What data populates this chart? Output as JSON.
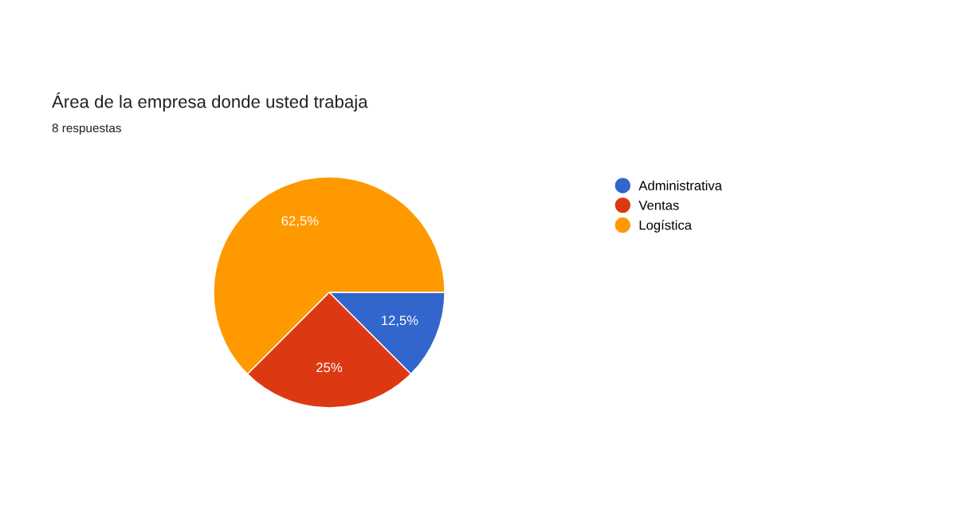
{
  "chart_data": {
    "type": "pie",
    "title": "Área de la empresa donde usted trabaja",
    "subtitle": "8 respuestas",
    "categories": [
      "Administrativa",
      "Ventas",
      "Logística"
    ],
    "values": [
      12.5,
      25,
      62.5
    ],
    "value_labels": [
      "12,5%",
      "25%",
      "62,5%"
    ],
    "colors": [
      "#3366cc",
      "#dc3912",
      "#ff9900"
    ],
    "legend": "right"
  }
}
